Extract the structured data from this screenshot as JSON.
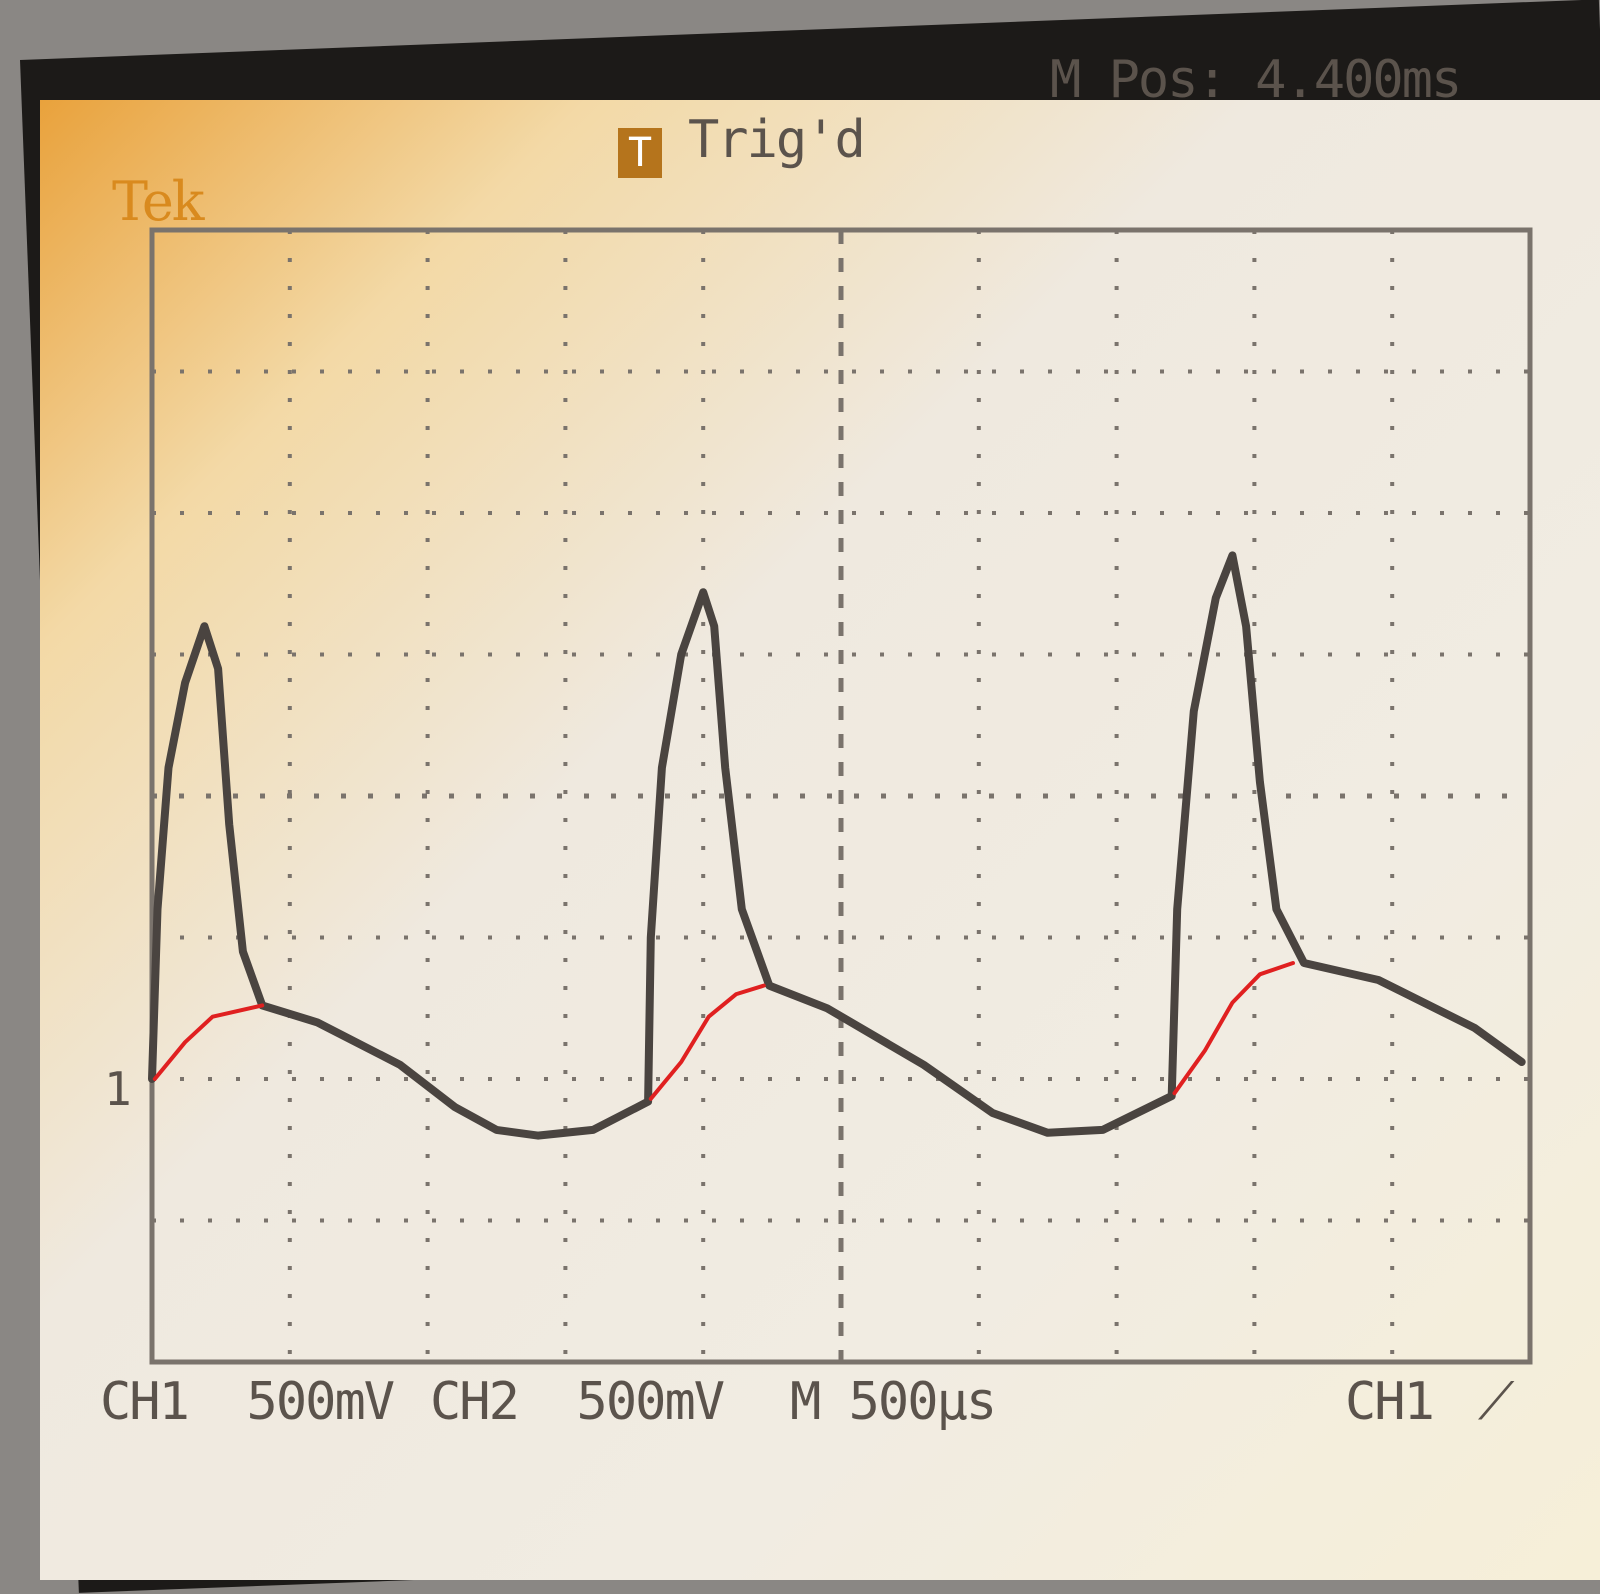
{
  "header": {
    "brand": "Tek",
    "trigger_badge": "T",
    "trigger_status": "Trig'd",
    "main_position": "M Pos: 4.400ms"
  },
  "footer": {
    "ch1_scale": "CH1  500mV",
    "ch2_scale": "CH2  500mV",
    "timebase": "M 500µs",
    "trigger_source": "CH1",
    "trigger_slope_icon": "rising-edge-icon"
  },
  "channel_marker": "1",
  "colors": {
    "trace": "#4a4440",
    "annotation": "#e02020",
    "accent": "#d98a1e",
    "graticule": "#7a736c"
  },
  "chart_data": {
    "type": "line",
    "title": "",
    "xlabel": "",
    "ylabel": "",
    "x_units": "ms",
    "y_units": "V",
    "divisions": {
      "horizontal": 10,
      "vertical": 8
    },
    "volts_per_div": 0.5,
    "time_per_div_ms": 0.5,
    "ground_level_div_below_center": 2,
    "xlim": [
      0,
      5
    ],
    "ylim": [
      -1,
      3
    ],
    "grid": true,
    "series": [
      {
        "role": "ch1-trace",
        "color": "#4a4440",
        "points": [
          [
            0,
            0
          ],
          [
            0.02,
            0.6
          ],
          [
            0.06,
            1.1
          ],
          [
            0.12,
            1.4
          ],
          [
            0.19,
            1.6
          ],
          [
            0.24,
            1.45
          ],
          [
            0.28,
            0.9
          ],
          [
            0.33,
            0.45
          ],
          [
            0.4,
            0.26
          ],
          [
            0.6,
            0.2
          ],
          [
            0.9,
            0.05
          ],
          [
            1.1,
            -0.1
          ],
          [
            1.25,
            -0.18
          ],
          [
            1.4,
            -0.2
          ],
          [
            1.6,
            -0.18
          ],
          [
            1.8,
            -0.08
          ],
          [
            1.81,
            0.5
          ],
          [
            1.85,
            1.1
          ],
          [
            1.92,
            1.5
          ],
          [
            2.0,
            1.72
          ],
          [
            2.04,
            1.6
          ],
          [
            2.08,
            1.1
          ],
          [
            2.14,
            0.6
          ],
          [
            2.24,
            0.33
          ],
          [
            2.45,
            0.25
          ],
          [
            2.8,
            0.05
          ],
          [
            3.05,
            -0.12
          ],
          [
            3.25,
            -0.19
          ],
          [
            3.45,
            -0.18
          ],
          [
            3.7,
            -0.06
          ],
          [
            3.72,
            0.6
          ],
          [
            3.78,
            1.3
          ],
          [
            3.86,
            1.7
          ],
          [
            3.92,
            1.85
          ],
          [
            3.97,
            1.6
          ],
          [
            4.02,
            1.05
          ],
          [
            4.08,
            0.6
          ],
          [
            4.18,
            0.41
          ],
          [
            4.45,
            0.35
          ],
          [
            4.8,
            0.18
          ],
          [
            4.97,
            0.06
          ]
        ]
      },
      {
        "role": "annotation",
        "color": "#e02020",
        "points": [
          [
            0.01,
            0
          ],
          [
            0.12,
            0.13
          ],
          [
            0.22,
            0.22
          ],
          [
            0.4,
            0.26
          ]
        ]
      },
      {
        "role": "annotation",
        "color": "#e02020",
        "points": [
          [
            1.81,
            -0.07
          ],
          [
            1.92,
            0.06
          ],
          [
            2.02,
            0.22
          ],
          [
            2.12,
            0.3
          ],
          [
            2.22,
            0.33
          ]
        ]
      },
      {
        "role": "annotation",
        "color": "#e02020",
        "points": [
          [
            3.71,
            -0.05
          ],
          [
            3.82,
            0.1
          ],
          [
            3.92,
            0.27
          ],
          [
            4.02,
            0.37
          ],
          [
            4.14,
            0.41
          ]
        ]
      }
    ]
  }
}
